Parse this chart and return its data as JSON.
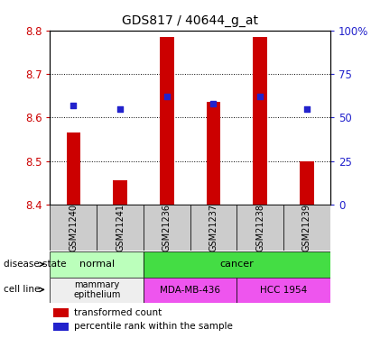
{
  "title": "GDS817 / 40644_g_at",
  "samples": [
    "GSM21240",
    "GSM21241",
    "GSM21236",
    "GSM21237",
    "GSM21238",
    "GSM21239"
  ],
  "bar_values": [
    8.565,
    8.455,
    8.785,
    8.635,
    8.785,
    8.5
  ],
  "bar_bottom": 8.4,
  "percentile_values_pct": [
    57,
    55,
    62,
    58,
    62,
    55
  ],
  "ylim": [
    8.4,
    8.8
  ],
  "y2lim": [
    0,
    100
  ],
  "yticks": [
    8.4,
    8.5,
    8.6,
    8.7,
    8.8
  ],
  "y2ticks": [
    0,
    25,
    50,
    75,
    100
  ],
  "y2labels": [
    "0",
    "25",
    "50",
    "75",
    "100%"
  ],
  "bar_color": "#cc0000",
  "dot_color": "#2222cc",
  "normal_color": "#bbffbb",
  "cancer_color": "#44dd44",
  "mammary_color": "#eeeeee",
  "mda_color": "#ee55ee",
  "hcc_color": "#ee55ee",
  "tick_label_color_left": "#cc0000",
  "tick_label_color_right": "#2222cc",
  "background_table": "#cccccc"
}
